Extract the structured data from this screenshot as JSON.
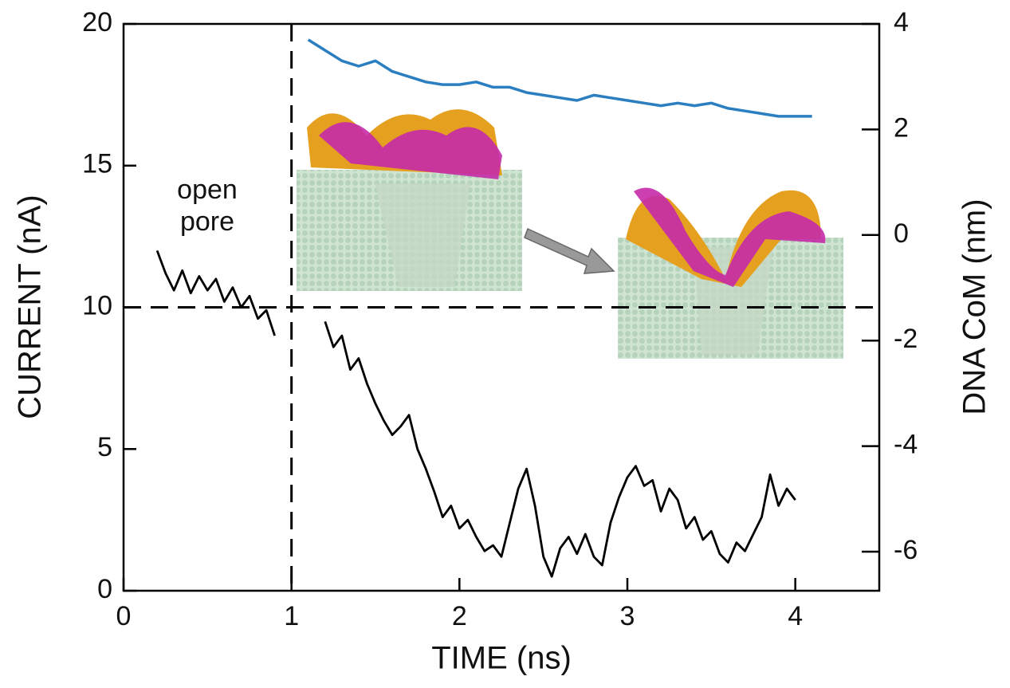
{
  "chart_data": {
    "type": "line",
    "xlabel": "TIME (ns)",
    "ylabel": "CURRENT (nA)",
    "y2label": "DNA CoM (nm)",
    "annotation": [
      "open",
      "pore"
    ],
    "xlim": [
      0,
      4.5
    ],
    "xticks": [
      0,
      1,
      2,
      3,
      4
    ],
    "ylim": [
      0,
      20
    ],
    "yticks": [
      0,
      5,
      10,
      15,
      20
    ],
    "y2lim": [
      -6.74,
      4
    ],
    "y2ticks": [
      -6,
      -4,
      -2,
      0,
      2,
      4
    ],
    "vlines": [
      1
    ],
    "hlines": [
      10
    ],
    "series": [
      {
        "color": "#000000",
        "axis": "y",
        "x": [
          0.2,
          0.25,
          0.3,
          0.35,
          0.4,
          0.45,
          0.5,
          0.55,
          0.6,
          0.65,
          0.7,
          0.75,
          0.8,
          0.85,
          0.9,
          1.05,
          1.2,
          1.25,
          1.3,
          1.35,
          1.4,
          1.45,
          1.5,
          1.55,
          1.6,
          1.65,
          1.7,
          1.75,
          1.8,
          1.85,
          1.9,
          1.95,
          2.0,
          2.05,
          2.1,
          2.15,
          2.2,
          2.25,
          2.3,
          2.35,
          2.4,
          2.45,
          2.5,
          2.55,
          2.6,
          2.65,
          2.7,
          2.75,
          2.8,
          2.85,
          2.9,
          2.95,
          3.0,
          3.05,
          3.1,
          3.15,
          3.2,
          3.25,
          3.3,
          3.35,
          3.4,
          3.45,
          3.5,
          3.55,
          3.6,
          3.65,
          3.7,
          3.75,
          3.8,
          3.85,
          3.9,
          3.95,
          4.0
        ],
        "values": [
          12.0,
          11.2,
          10.6,
          11.3,
          10.5,
          11.1,
          10.6,
          11.0,
          10.2,
          10.7,
          10.0,
          10.4,
          9.6,
          9.9,
          9.0,
          null,
          9.5,
          8.6,
          9.0,
          7.8,
          8.2,
          7.3,
          6.6,
          6.0,
          5.5,
          5.8,
          6.2,
          5.0,
          4.3,
          3.5,
          2.6,
          3.0,
          2.2,
          2.5,
          1.9,
          1.4,
          1.6,
          1.2,
          2.4,
          3.6,
          4.3,
          3.0,
          1.2,
          0.5,
          1.5,
          1.9,
          1.3,
          2.0,
          1.2,
          0.9,
          2.4,
          3.3,
          4.0,
          4.4,
          3.7,
          3.9,
          2.8,
          3.6,
          3.2,
          2.2,
          2.6,
          1.8,
          2.1,
          1.3,
          1.0,
          1.7,
          1.4,
          2.0,
          2.6,
          4.1,
          3.0,
          3.6,
          3.2
        ]
      },
      {
        "color": "#2b7fc1",
        "axis": "y2",
        "x": [
          1.1,
          1.2,
          1.3,
          1.4,
          1.5,
          1.6,
          1.7,
          1.8,
          1.9,
          2.0,
          2.1,
          2.2,
          2.3,
          2.4,
          2.5,
          2.6,
          2.7,
          2.8,
          2.9,
          3.0,
          3.1,
          3.2,
          3.3,
          3.4,
          3.5,
          3.6,
          3.7,
          3.8,
          3.9,
          4.0,
          4.1
        ],
        "values": [
          3.7,
          3.5,
          3.3,
          3.2,
          3.3,
          3.1,
          3.0,
          2.9,
          2.85,
          2.85,
          2.9,
          2.8,
          2.8,
          2.7,
          2.65,
          2.6,
          2.55,
          2.65,
          2.6,
          2.55,
          2.5,
          2.45,
          2.5,
          2.45,
          2.5,
          2.4,
          2.35,
          2.3,
          2.25,
          2.25,
          2.25
        ]
      }
    ]
  }
}
